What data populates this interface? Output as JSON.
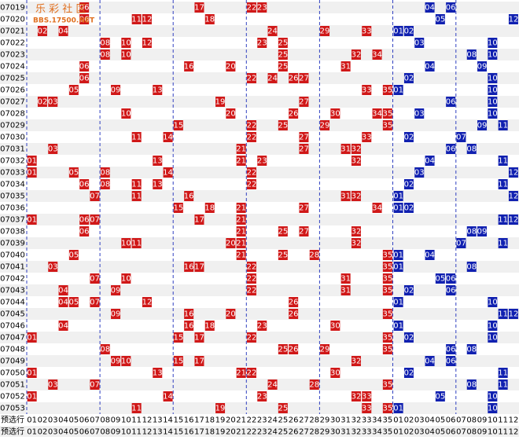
{
  "watermark": {
    "title": "乐 彩 社 区",
    "url": "BBS.17500.NET"
  },
  "rows": [
    {
      "label": "07019",
      "red": [
        "06",
        "17",
        "22",
        "23"
      ],
      "blue": [
        "04",
        "06"
      ]
    },
    {
      "label": "07020",
      "red": [
        "06",
        "11",
        "12",
        "18"
      ],
      "blue": [
        "05",
        "12"
      ]
    },
    {
      "label": "07021",
      "red": [
        "02",
        "04",
        "24",
        "29",
        "33"
      ],
      "blue": [
        "01",
        "02"
      ]
    },
    {
      "label": "07022",
      "red": [
        "08",
        "10",
        "12",
        "23",
        "25"
      ],
      "blue": [
        "03",
        "10"
      ]
    },
    {
      "label": "07023",
      "red": [
        "08",
        "10",
        "25",
        "32",
        "34"
      ],
      "blue": [
        "08",
        "10"
      ]
    },
    {
      "label": "07024",
      "red": [
        "06",
        "16",
        "20",
        "25",
        "31"
      ],
      "blue": [
        "04",
        "09"
      ]
    },
    {
      "label": "07025",
      "red": [
        "06",
        "22",
        "24",
        "26",
        "27"
      ],
      "blue": [
        "02",
        "10"
      ]
    },
    {
      "label": "07026",
      "red": [
        "05",
        "09",
        "13",
        "33",
        "35"
      ],
      "blue": [
        "01",
        "10"
      ]
    },
    {
      "label": "07027",
      "red": [
        "02",
        "03",
        "19",
        "27"
      ],
      "blue": [
        "06",
        "10"
      ]
    },
    {
      "label": "07028",
      "red": [
        "10",
        "20",
        "26",
        "30",
        "34",
        "35"
      ],
      "blue": [
        "03",
        "10"
      ]
    },
    {
      "label": "07029",
      "red": [
        "15",
        "22",
        "25",
        "29",
        "35"
      ],
      "blue": [
        "09",
        "11"
      ]
    },
    {
      "label": "07030",
      "red": [
        "11",
        "14",
        "22",
        "27",
        "33"
      ],
      "blue": [
        "02",
        "07"
      ]
    },
    {
      "label": "07031",
      "red": [
        "03",
        "21",
        "27",
        "31",
        "32"
      ],
      "blue": [
        "06",
        "08"
      ]
    },
    {
      "label": "07032",
      "red": [
        "01",
        "13",
        "21",
        "23",
        "32"
      ],
      "blue": [
        "04",
        "11"
      ]
    },
    {
      "label": "07033",
      "red": [
        "01",
        "05",
        "08",
        "14",
        "22"
      ],
      "blue": [
        "03",
        "12"
      ]
    },
    {
      "label": "07034",
      "red": [
        "06",
        "08",
        "11",
        "13",
        "22"
      ],
      "blue": [
        "02",
        "11"
      ]
    },
    {
      "label": "07035",
      "red": [
        "07",
        "11",
        "16",
        "31",
        "32"
      ],
      "blue": [
        "01",
        "12"
      ]
    },
    {
      "label": "07036",
      "red": [
        "15",
        "18",
        "21",
        "27",
        "34"
      ],
      "blue": [
        "01",
        "02"
      ]
    },
    {
      "label": "07037",
      "red": [
        "01",
        "06",
        "07",
        "17",
        "21"
      ],
      "blue": [
        "11",
        "12"
      ]
    },
    {
      "label": "07038",
      "red": [
        "06",
        "21",
        "25",
        "27",
        "32"
      ],
      "blue": [
        "08",
        "09"
      ]
    },
    {
      "label": "07039",
      "red": [
        "10",
        "11",
        "20",
        "21",
        "32"
      ],
      "blue": [
        "07",
        "11"
      ]
    },
    {
      "label": "07040",
      "red": [
        "05",
        "21",
        "25",
        "28",
        "35"
      ],
      "blue": [
        "01",
        "04"
      ]
    },
    {
      "label": "07041",
      "red": [
        "03",
        "16",
        "17",
        "22",
        "35"
      ],
      "blue": [
        "01",
        "08"
      ]
    },
    {
      "label": "07042",
      "red": [
        "07",
        "10",
        "22",
        "31",
        "35"
      ],
      "blue": [
        "05",
        "06"
      ]
    },
    {
      "label": "07043",
      "red": [
        "04",
        "09",
        "22",
        "31",
        "35"
      ],
      "blue": [
        "02",
        "06"
      ]
    },
    {
      "label": "07044",
      "red": [
        "04",
        "05",
        "07",
        "12",
        "26"
      ],
      "blue": [
        "01",
        "10"
      ]
    },
    {
      "label": "07045",
      "red": [
        "09",
        "16",
        "20",
        "26",
        "35"
      ],
      "blue": [
        "11",
        "12"
      ]
    },
    {
      "label": "07046",
      "red": [
        "04",
        "16",
        "18",
        "23",
        "30"
      ],
      "blue": [
        "01",
        "10"
      ]
    },
    {
      "label": "07047",
      "red": [
        "01",
        "15",
        "17",
        "22",
        "35"
      ],
      "blue": [
        "02",
        "10"
      ]
    },
    {
      "label": "07048",
      "red": [
        "08",
        "25",
        "26",
        "29",
        "35"
      ],
      "blue": [
        "06",
        "08"
      ]
    },
    {
      "label": "07049",
      "red": [
        "09",
        "10",
        "15",
        "17",
        "32"
      ],
      "blue": [
        "04",
        "06"
      ]
    },
    {
      "label": "07050",
      "red": [
        "01",
        "13",
        "21",
        "22",
        "30"
      ],
      "blue": [
        "02",
        "11"
      ]
    },
    {
      "label": "07051",
      "red": [
        "03",
        "07",
        "24",
        "28",
        "35"
      ],
      "blue": [
        "08",
        "11"
      ]
    },
    {
      "label": "07052",
      "red": [
        "01",
        "14",
        "23",
        "32",
        "33"
      ],
      "blue": [
        "05",
        "10"
      ]
    },
    {
      "label": "07053",
      "red": [
        "11",
        "19",
        "25",
        "33",
        "35"
      ],
      "blue": [
        "01",
        "10"
      ]
    }
  ],
  "footer": {
    "labels": [
      "预选行",
      "预选行"
    ],
    "red_numbers": [
      "01",
      "02",
      "03",
      "04",
      "05",
      "06",
      "07",
      "08",
      "09",
      "10",
      "11",
      "12",
      "13",
      "14",
      "15",
      "16",
      "17",
      "18",
      "19",
      "20",
      "21",
      "22",
      "23",
      "24",
      "25",
      "26",
      "27",
      "28",
      "29",
      "30",
      "31",
      "32",
      "33",
      "34",
      "35"
    ],
    "blue_numbers": [
      "01",
      "02",
      "03",
      "04",
      "05",
      "06",
      "07",
      "08",
      "09",
      "10",
      "11",
      "12"
    ]
  }
}
